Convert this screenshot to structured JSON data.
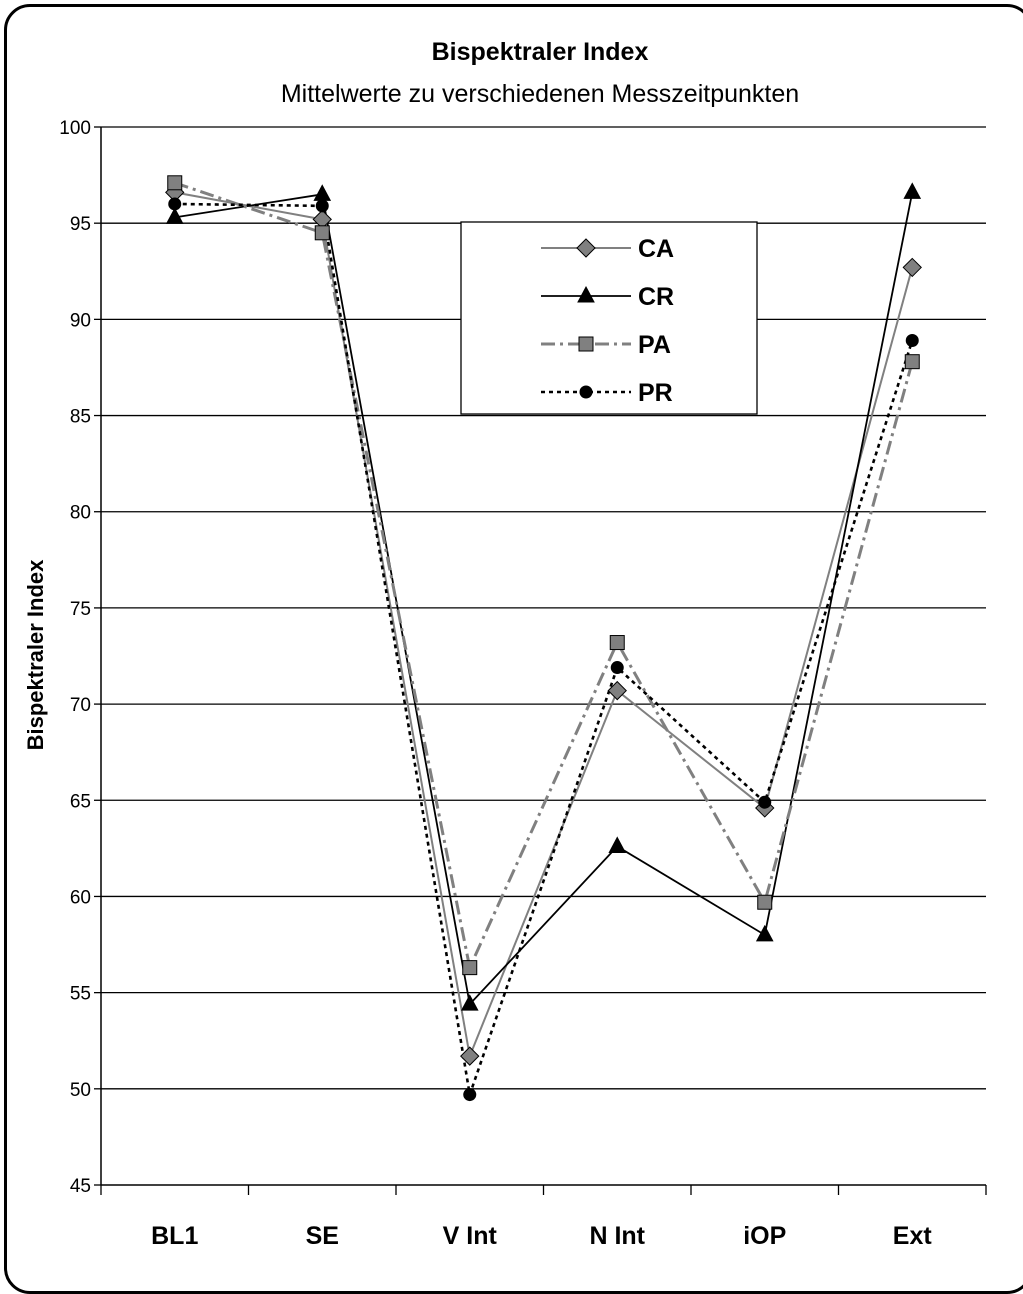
{
  "chart_data": {
    "type": "line",
    "title": "Bispektraler Index",
    "subtitle": "Mittelwerte zu verschiedenen Messzeitpunkten",
    "xlabel": "",
    "ylabel": "Bispektraler Index",
    "categories": [
      "BL1",
      "SE",
      "V Int",
      "N Int",
      "iOP",
      "Ext"
    ],
    "ylim": [
      45,
      100
    ],
    "yticks": [
      45,
      50,
      55,
      60,
      65,
      70,
      75,
      80,
      85,
      90,
      95,
      100
    ],
    "grid": true,
    "legend_position": "top-center",
    "series": [
      {
        "name": "CA",
        "values": [
          96.6,
          95.2,
          51.7,
          70.7,
          64.6,
          92.7
        ],
        "color": "#808080",
        "marker": "diamond",
        "dash": "solid"
      },
      {
        "name": "CR",
        "values": [
          95.3,
          96.5,
          54.4,
          62.6,
          58.0,
          96.6
        ],
        "color": "#000000",
        "marker": "triangle",
        "dash": "solid"
      },
      {
        "name": "PA",
        "values": [
          97.1,
          94.5,
          56.3,
          73.2,
          59.7,
          87.8
        ],
        "color": "#808080",
        "marker": "square",
        "dash": "dashdot"
      },
      {
        "name": "PR",
        "values": [
          96.0,
          95.9,
          49.7,
          71.9,
          64.9,
          88.9
        ],
        "color": "#000000",
        "marker": "circle",
        "dash": "dotted"
      }
    ]
  }
}
